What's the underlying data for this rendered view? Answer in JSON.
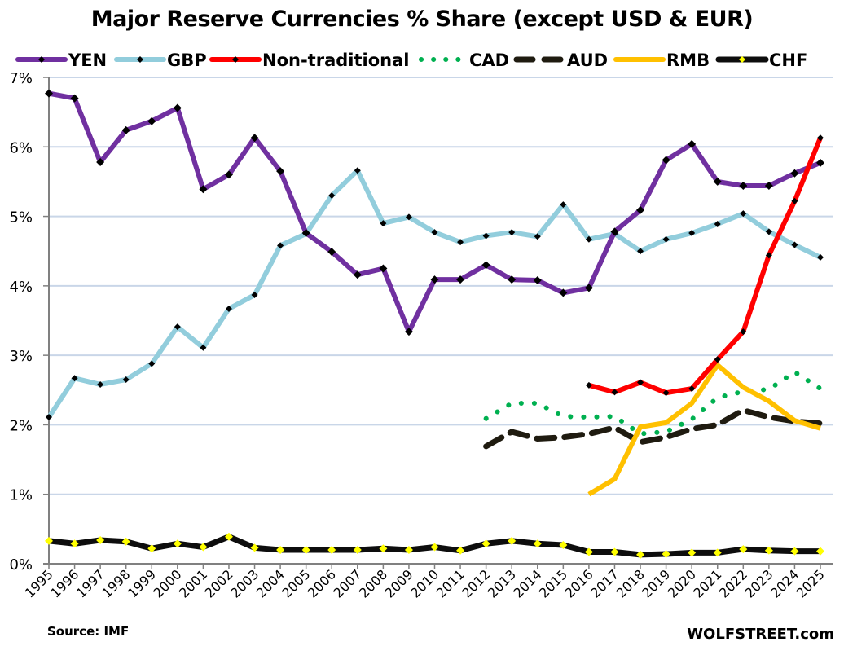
{
  "chart_data": {
    "type": "line",
    "title": "Major Reserve Currencies % Share (except USD & EUR)",
    "xlabel": "",
    "ylabel": "",
    "x": [
      1995,
      1996,
      1997,
      1998,
      1999,
      2000,
      2001,
      2002,
      2003,
      2004,
      2005,
      2006,
      2007,
      2008,
      2009,
      2010,
      2011,
      2012,
      2013,
      2014,
      2015,
      2016,
      2017,
      2018,
      2019,
      2020,
      2021,
      2022,
      2023,
      2024,
      2025
    ],
    "ylim": [
      0,
      7
    ],
    "yticks": [
      "0%",
      "1%",
      "2%",
      "3%",
      "4%",
      "5%",
      "6%",
      "7%"
    ],
    "grid": true,
    "legend_position": "top",
    "series": [
      {
        "name": "YEN",
        "color": "#7030A0",
        "style": "solid-marker",
        "marker_color": "#000000",
        "values": [
          6.77,
          6.7,
          5.78,
          6.24,
          6.37,
          6.56,
          5.39,
          5.6,
          6.13,
          5.65,
          4.76,
          4.49,
          4.16,
          4.25,
          3.34,
          4.09,
          4.09,
          4.3,
          4.09,
          4.08,
          3.9,
          3.97,
          4.78,
          5.09,
          5.81,
          6.04,
          5.5,
          5.44,
          5.44,
          5.62,
          5.77
        ]
      },
      {
        "name": "GBP",
        "color": "#92CDDC",
        "style": "solid-marker",
        "marker_color": "#000000",
        "values": [
          2.11,
          2.67,
          2.58,
          2.65,
          2.88,
          3.41,
          3.11,
          3.67,
          3.87,
          4.58,
          4.75,
          5.3,
          5.66,
          4.9,
          4.99,
          4.77,
          4.63,
          4.72,
          4.77,
          4.71,
          5.17,
          4.67,
          4.75,
          4.5,
          4.67,
          4.76,
          4.89,
          5.04,
          4.78,
          4.59,
          4.41
        ]
      },
      {
        "name": "Non-traditional",
        "color": "#FF0000",
        "style": "solid-marker",
        "marker_color": "#000000",
        "values": [
          null,
          null,
          null,
          null,
          null,
          null,
          null,
          null,
          null,
          null,
          null,
          null,
          null,
          null,
          null,
          null,
          null,
          null,
          null,
          null,
          null,
          2.57,
          2.47,
          2.61,
          2.46,
          2.52,
          2.94,
          3.34,
          4.44,
          5.22,
          6.13
        ]
      },
      {
        "name": "CAD",
        "color": "#00B050",
        "style": "dotted",
        "values": [
          null,
          null,
          null,
          null,
          null,
          null,
          null,
          null,
          null,
          null,
          null,
          null,
          null,
          null,
          null,
          null,
          null,
          2.09,
          2.31,
          2.31,
          2.12,
          2.11,
          2.12,
          1.87,
          1.9,
          2.08,
          2.39,
          2.48,
          2.51,
          2.76,
          2.52
        ]
      },
      {
        "name": "AUD",
        "color": "#1F1B10",
        "style": "dashed",
        "values": [
          null,
          null,
          null,
          null,
          null,
          null,
          null,
          null,
          null,
          null,
          null,
          null,
          null,
          null,
          null,
          null,
          null,
          1.69,
          1.9,
          1.8,
          1.82,
          1.87,
          1.96,
          1.75,
          1.82,
          1.94,
          2.0,
          2.21,
          2.11,
          2.05,
          2.02
        ]
      },
      {
        "name": "RMB",
        "color": "#FFC000",
        "style": "solid",
        "values": [
          null,
          null,
          null,
          null,
          null,
          null,
          null,
          null,
          null,
          null,
          null,
          null,
          null,
          null,
          null,
          null,
          null,
          null,
          null,
          null,
          null,
          1.0,
          1.22,
          1.97,
          2.03,
          2.31,
          2.86,
          2.54,
          2.34,
          2.06,
          1.95
        ]
      },
      {
        "name": "CHF",
        "color": "#0D0D0D",
        "style": "solid-marker",
        "marker_color": "#FFFF00",
        "values": [
          0.33,
          0.29,
          0.34,
          0.32,
          0.22,
          0.29,
          0.24,
          0.39,
          0.23,
          0.2,
          0.2,
          0.2,
          0.2,
          0.22,
          0.2,
          0.24,
          0.19,
          0.29,
          0.33,
          0.29,
          0.27,
          0.17,
          0.17,
          0.13,
          0.14,
          0.16,
          0.16,
          0.21,
          0.19,
          0.18,
          0.18
        ]
      }
    ],
    "annotations": {
      "source": "Source: IMF",
      "brand": "WOLFSTREET.com"
    },
    "colors": {
      "gridline": "#C9D6E8",
      "axis": "#808080"
    }
  }
}
